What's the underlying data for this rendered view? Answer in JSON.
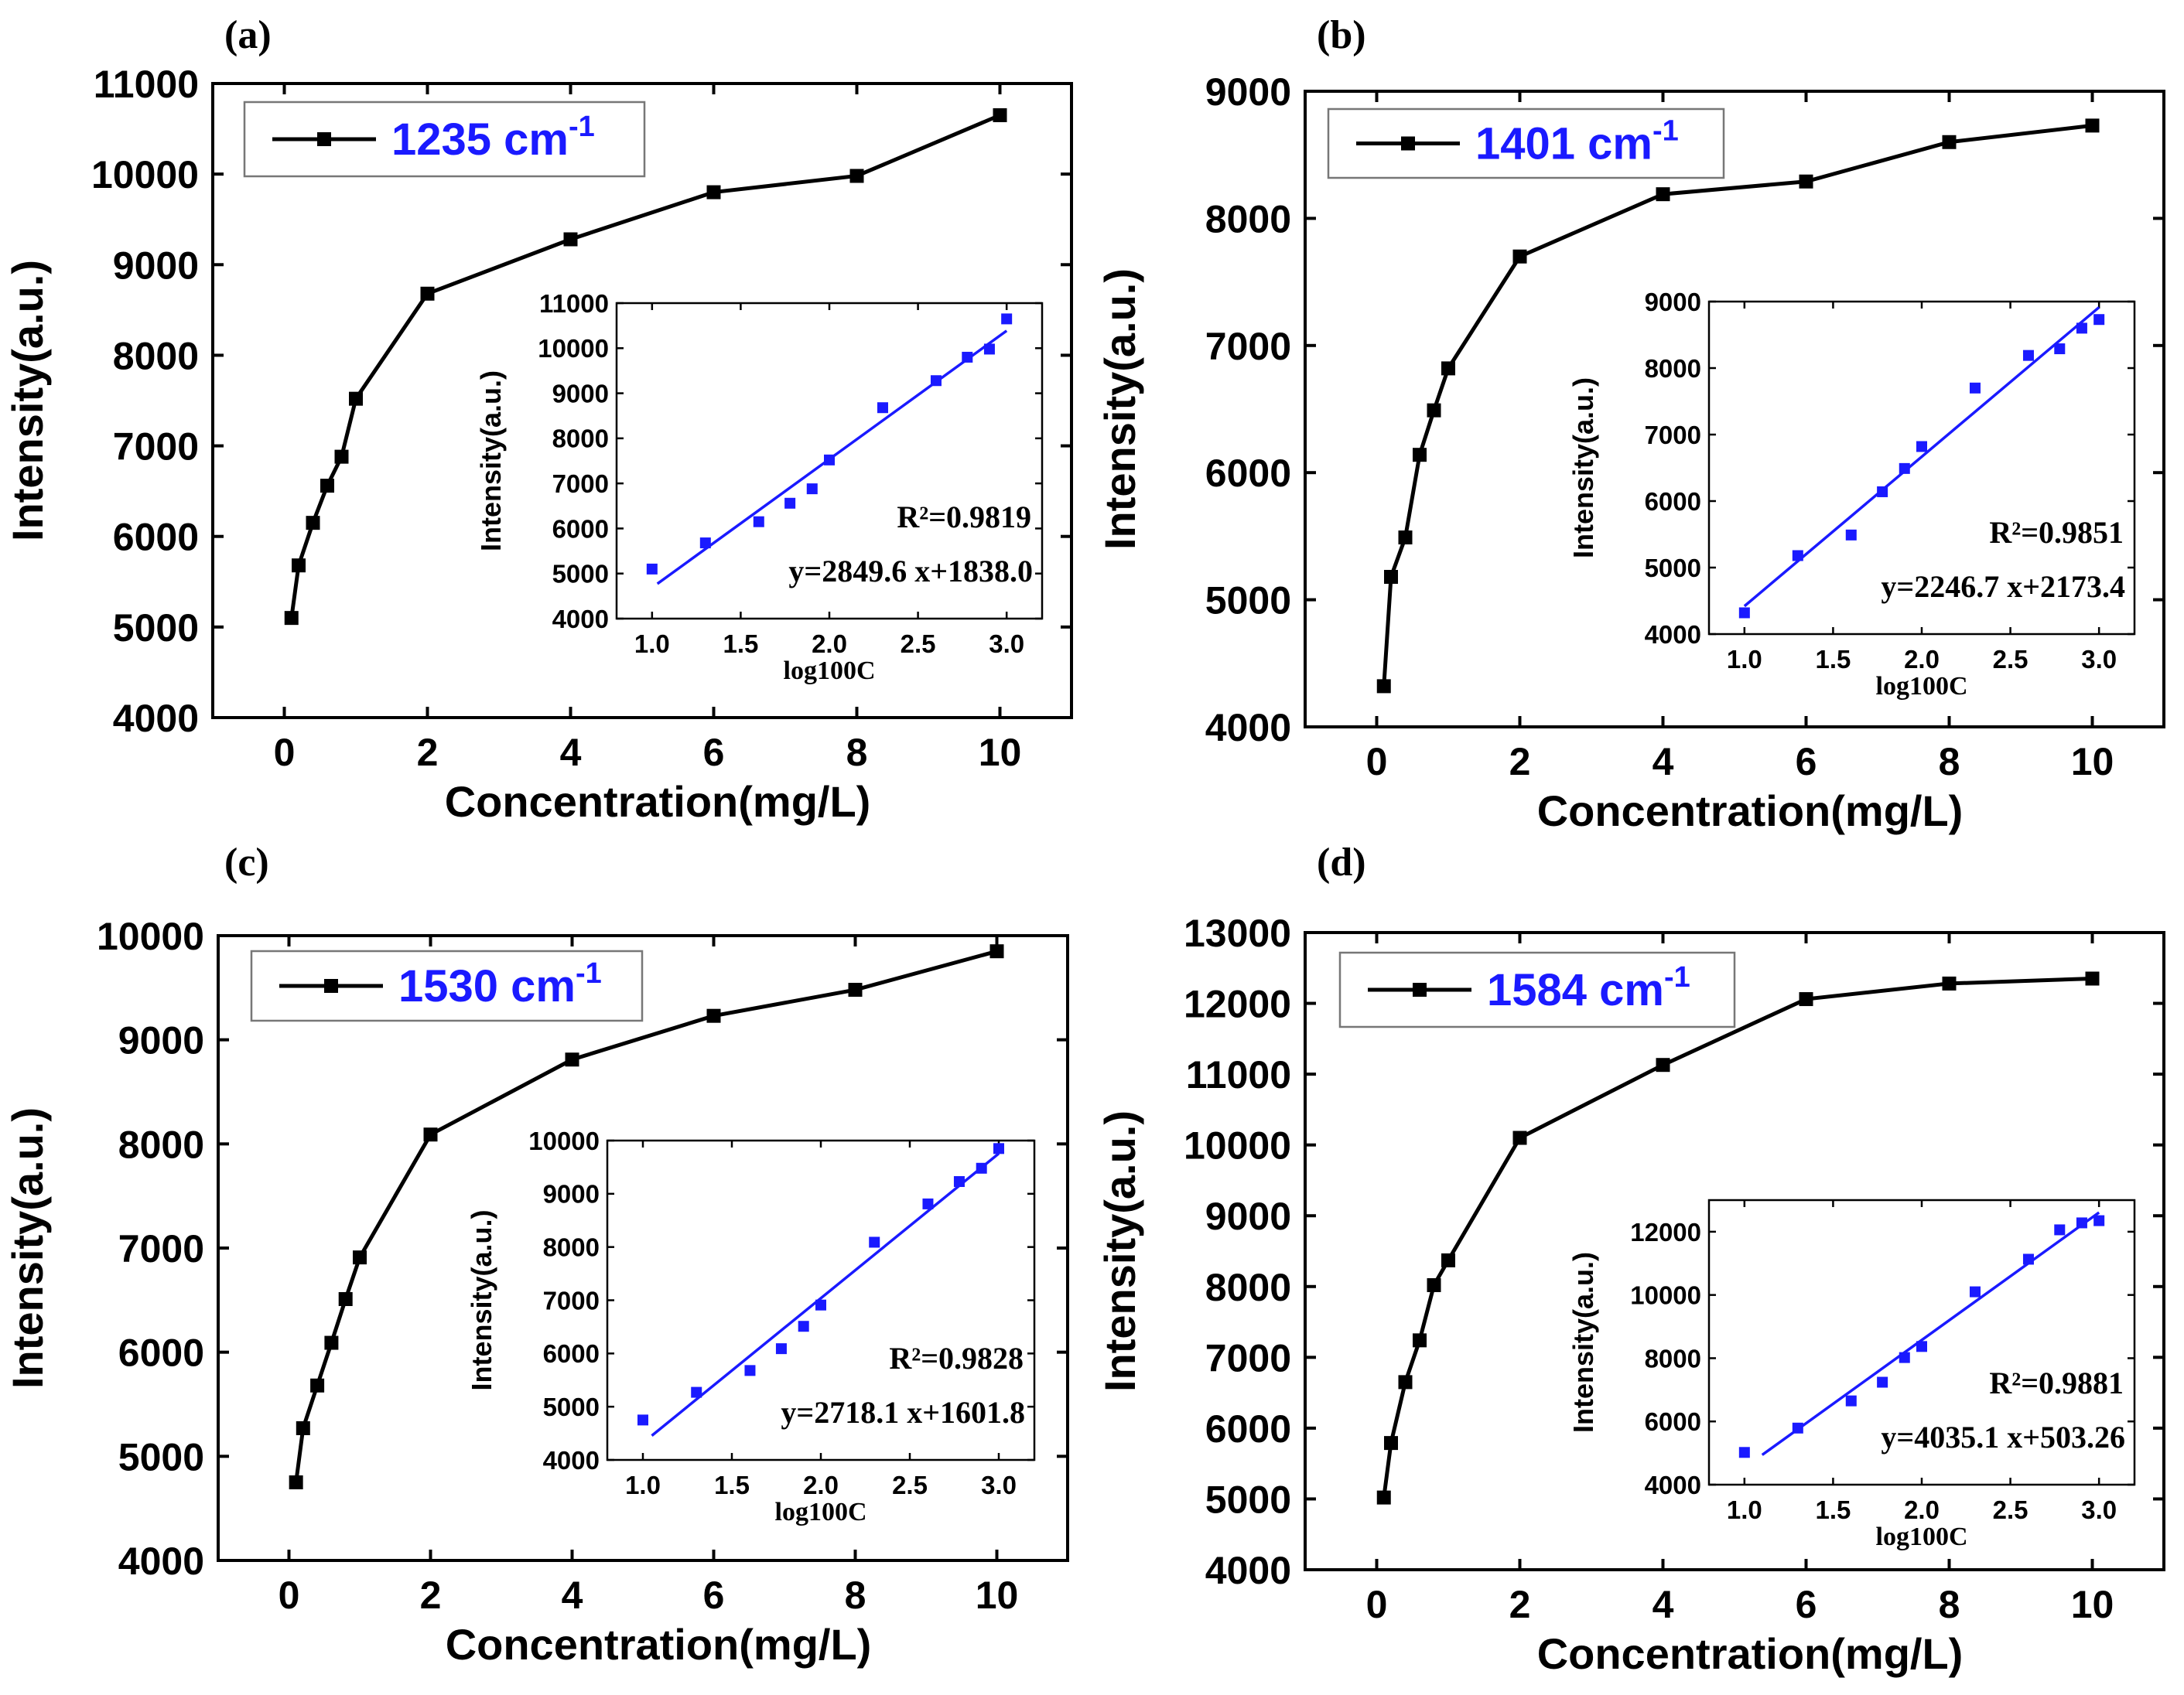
{
  "panels": [
    {
      "label": "(a)",
      "legend_wavenumber": "1235",
      "legend_unit": "cm",
      "legend_exponent": "-1",
      "r_squared": "R²=0.9819",
      "equation": "y=2849.6 x+1838.0"
    },
    {
      "label": "(b)",
      "legend_wavenumber": "1401",
      "legend_unit": "cm",
      "legend_exponent": "-1",
      "r_squared": "R²=0.9851",
      "equation": "y=2246.7 x+2173.4"
    },
    {
      "label": "(c)",
      "legend_wavenumber": "1530",
      "legend_unit": "cm",
      "legend_exponent": "-1",
      "r_squared": "R²=0.9828",
      "equation": "y=2718.1 x+1601.8"
    },
    {
      "label": "(d)",
      "legend_wavenumber": "1584",
      "legend_unit": "cm",
      "legend_exponent": "-1",
      "r_squared": "R²=0.9881",
      "equation": "y=4035.1 x+503.26"
    }
  ],
  "colors": {
    "main_line": "#000000",
    "inset_points": "#1a1aff",
    "fit_line": "#1a1aff",
    "legend_text": "#1a1aff"
  },
  "chart_data": [
    {
      "type": "line",
      "title": "(a) 1235 cm-1",
      "xlabel": "Concentration(mg/L)",
      "ylabel": "Intensity(a.u.)",
      "xlim": [
        -1,
        11
      ],
      "ylim": [
        4000,
        11000
      ],
      "xticks": [
        0,
        2,
        4,
        6,
        8,
        10
      ],
      "yticks": [
        4000,
        5000,
        6000,
        7000,
        8000,
        9000,
        10000,
        11000
      ],
      "series": [
        {
          "name": "1235 cm-1",
          "x": [
            0.1,
            0.2,
            0.4,
            0.6,
            0.8,
            1,
            2,
            4,
            6,
            8,
            10
          ],
          "y": [
            5100,
            5680,
            6150,
            6560,
            6880,
            7520,
            8680,
            9280,
            9800,
            9980,
            10650
          ]
        }
      ],
      "inset": {
        "type": "scatter",
        "xlabel": "log100C",
        "ylabel": "Intensity(a.u.)",
        "xlim": [
          0.8,
          3.2
        ],
        "ylim": [
          4000,
          11000
        ],
        "xticks": [
          1.0,
          1.5,
          2.0,
          2.5,
          3.0
        ],
        "yticks": [
          4000,
          5000,
          6000,
          7000,
          8000,
          9000,
          10000,
          11000
        ],
        "x": [
          1.0,
          1.301,
          1.602,
          1.778,
          1.903,
          2.0,
          2.301,
          2.602,
          2.778,
          2.903,
          3.0
        ],
        "y": [
          5100,
          5680,
          6150,
          6560,
          6880,
          7520,
          8680,
          9280,
          9800,
          9980,
          10650
        ],
        "fit": {
          "slope": 2849.6,
          "intercept": 1838.0,
          "x_range": [
            1.03,
            3.0
          ],
          "r2": 0.9819
        }
      }
    },
    {
      "type": "line",
      "title": "(b) 1401 cm-1",
      "xlabel": "Concentration(mg/L)",
      "ylabel": "Intensity(a.u.)",
      "xlim": [
        -1,
        11
      ],
      "ylim": [
        4000,
        9000
      ],
      "xticks": [
        0,
        2,
        4,
        6,
        8,
        10
      ],
      "yticks": [
        4000,
        5000,
        6000,
        7000,
        8000,
        9000
      ],
      "series": [
        {
          "name": "1401 cm-1",
          "x": [
            0.1,
            0.2,
            0.4,
            0.6,
            0.8,
            1,
            2,
            4,
            6,
            8,
            10
          ],
          "y": [
            4320,
            5180,
            5490,
            6140,
            6490,
            6820,
            7700,
            8190,
            8290,
            8600,
            8730
          ]
        }
      ],
      "inset": {
        "type": "scatter",
        "xlabel": "log100C",
        "ylabel": "Intensity(a.u.)",
        "xlim": [
          0.8,
          3.2
        ],
        "ylim": [
          4000,
          9000
        ],
        "xticks": [
          1.0,
          1.5,
          2.0,
          2.5,
          3.0
        ],
        "yticks": [
          4000,
          5000,
          6000,
          7000,
          8000,
          9000
        ],
        "x": [
          1.0,
          1.301,
          1.602,
          1.778,
          1.903,
          2.0,
          2.301,
          2.602,
          2.778,
          2.903,
          3.0
        ],
        "y": [
          4320,
          5180,
          5490,
          6140,
          6490,
          6820,
          7700,
          8190,
          8290,
          8600,
          8730
        ],
        "fit": {
          "slope": 2246.7,
          "intercept": 2173.4,
          "x_range": [
            1.0,
            3.0
          ],
          "r2": 0.9851
        }
      }
    },
    {
      "type": "line",
      "title": "(c) 1530 cm-1",
      "xlabel": "Concentration(mg/L)",
      "ylabel": "Intensity(a.u.)",
      "xlim": [
        -1,
        11
      ],
      "ylim": [
        4000,
        10000
      ],
      "xticks": [
        0,
        2,
        4,
        6,
        8,
        10
      ],
      "yticks": [
        4000,
        5000,
        6000,
        7000,
        8000,
        9000,
        10000
      ],
      "series": [
        {
          "name": "1530 cm-1",
          "x": [
            0.1,
            0.2,
            0.4,
            0.6,
            0.8,
            1,
            2,
            4,
            6,
            8,
            10
          ],
          "y": [
            4750,
            5270,
            5680,
            6090,
            6510,
            6910,
            8090,
            8810,
            9230,
            9480,
            9850
          ]
        }
      ],
      "inset": {
        "type": "scatter",
        "xlabel": "log100C",
        "ylabel": "Intensity(a.u.)",
        "xlim": [
          0.8,
          3.2
        ],
        "ylim": [
          4000,
          10000
        ],
        "xticks": [
          1.0,
          1.5,
          2.0,
          2.5,
          3.0
        ],
        "yticks": [
          4000,
          5000,
          6000,
          7000,
          8000,
          9000,
          10000
        ],
        "x": [
          1.0,
          1.301,
          1.602,
          1.778,
          1.903,
          2.0,
          2.301,
          2.602,
          2.778,
          2.903,
          3.0
        ],
        "y": [
          4750,
          5270,
          5680,
          6090,
          6510,
          6910,
          8090,
          8810,
          9230,
          9480,
          9850
        ],
        "fit": {
          "slope": 2718.1,
          "intercept": 1601.8,
          "x_range": [
            1.05,
            3.0
          ],
          "r2": 0.9828
        }
      }
    },
    {
      "type": "line",
      "title": "(d) 1584 cm-1",
      "xlabel": "Concentration(mg/L)",
      "ylabel": "Intensity(a.u.)",
      "xlim": [
        -1,
        11
      ],
      "ylim": [
        4000,
        13000
      ],
      "xticks": [
        0,
        2,
        4,
        6,
        8,
        10
      ],
      "yticks": [
        4000,
        5000,
        6000,
        7000,
        8000,
        9000,
        10000,
        11000,
        12000,
        13000
      ],
      "series": [
        {
          "name": "1584 cm-1",
          "x": [
            0.1,
            0.2,
            0.4,
            0.6,
            0.8,
            1,
            2,
            4,
            6,
            8,
            10
          ],
          "y": [
            5020,
            5790,
            6650,
            7240,
            8020,
            8370,
            10100,
            11130,
            12060,
            12280,
            12350
          ]
        }
      ],
      "inset": {
        "type": "scatter",
        "xlabel": "log100C",
        "ylabel": "Intensity(a.u.)",
        "xlim": [
          0.8,
          3.2
        ],
        "ylim": [
          4000,
          13000
        ],
        "xticks": [
          1.0,
          1.5,
          2.0,
          2.5,
          3.0
        ],
        "yticks": [
          4000,
          6000,
          8000,
          10000,
          12000
        ],
        "x": [
          1.0,
          1.301,
          1.602,
          1.778,
          1.903,
          2.0,
          2.301,
          2.602,
          2.778,
          2.903,
          3.0
        ],
        "y": [
          5020,
          5790,
          6650,
          7240,
          8020,
          8370,
          10100,
          11130,
          12060,
          12280,
          12350
        ],
        "fit": {
          "slope": 4035.1,
          "intercept": 503.26,
          "x_range": [
            1.1,
            3.0
          ],
          "r2": 0.9881
        }
      }
    }
  ]
}
